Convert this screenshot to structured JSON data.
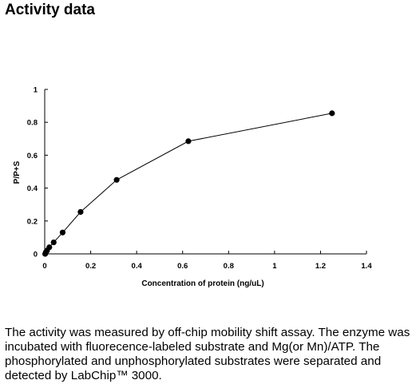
{
  "heading": "Activity data",
  "caption": "The activity was measured by off-chip mobility shift assay. The enzyme was incubated with fluorecence-labeled  substrate and Mg(or Mn)/ATP. The phosphorylated and unphosphorylated substrates were separated and detected by LabChip™ 3000.",
  "chart_data": {
    "type": "line",
    "title": "",
    "xlabel": "Concentration of protein (ng/uL)",
    "ylabel": "P/P+S",
    "xlim": [
      0,
      1.4
    ],
    "ylim": [
      0,
      1
    ],
    "x_ticks": [
      "0",
      "0.2",
      "0.4",
      "0.6",
      "0.8",
      "1",
      "1.2",
      "1.4"
    ],
    "y_ticks": [
      "0",
      "0.2",
      "0.4",
      "0.6",
      "0.8",
      "1"
    ],
    "grid": false,
    "markers": "filled-circle",
    "series": [
      {
        "x": [
          0.002,
          0.005,
          0.01,
          0.02,
          0.039,
          0.078,
          0.156,
          0.313,
          0.625,
          1.25
        ],
        "y": [
          0.0,
          0.01,
          0.02,
          0.04,
          0.07,
          0.13,
          0.255,
          0.45,
          0.685,
          0.855
        ]
      }
    ]
  }
}
